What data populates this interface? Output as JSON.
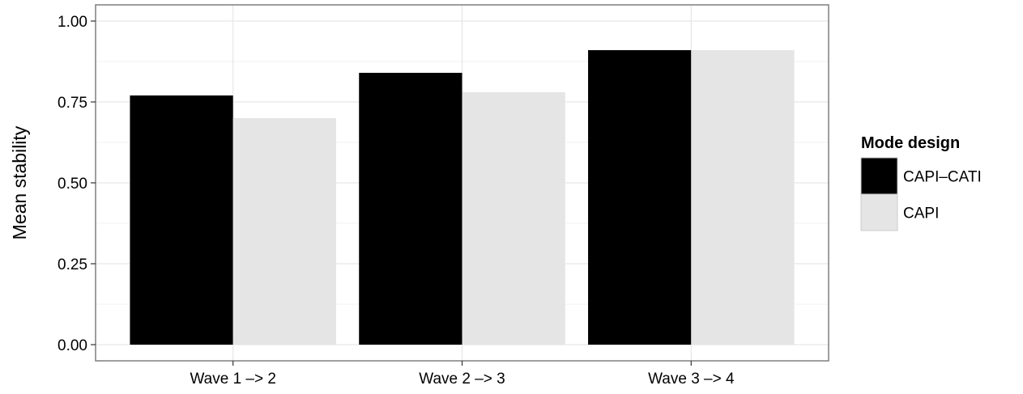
{
  "chart_data": {
    "type": "bar",
    "title": "",
    "xlabel": "",
    "ylabel": "Mean stability",
    "categories": [
      "Wave 1 –> 2",
      "Wave 2 –> 3",
      "Wave 3 –> 4"
    ],
    "series": [
      {
        "name": "CAPI–CATI",
        "values": [
          0.77,
          0.84,
          0.91
        ],
        "color": "#000000"
      },
      {
        "name": "CAPI",
        "values": [
          0.7,
          0.78,
          0.91
        ],
        "color": "#e5e5e5"
      }
    ],
    "ylim": [
      0,
      1
    ],
    "yticks": [
      0.0,
      0.25,
      0.5,
      0.75,
      1.0
    ],
    "ytick_labels": [
      "0.00",
      "0.25",
      "0.50",
      "0.75",
      "1.00"
    ],
    "grid": true,
    "legend": {
      "title": "Mode design",
      "position": "right"
    }
  }
}
